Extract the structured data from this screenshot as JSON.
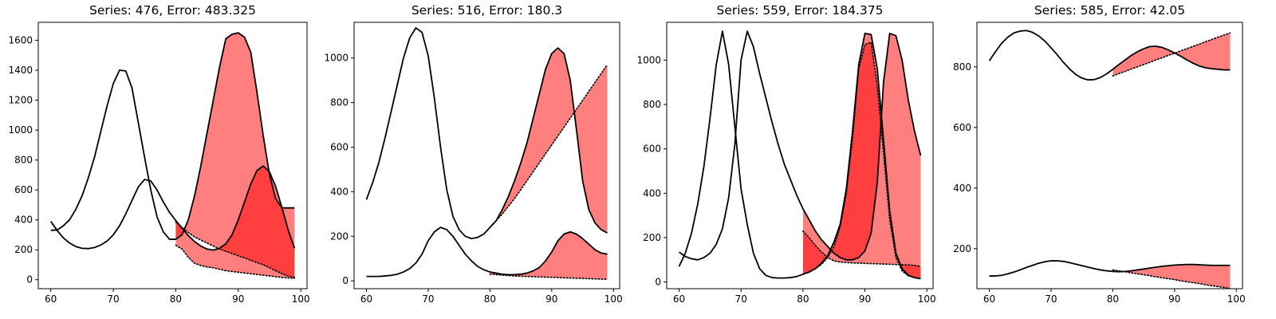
{
  "chart_data": [
    {
      "type": "line",
      "title": "Series: 476, Error: 483.325",
      "xlim": [
        58,
        101
      ],
      "ylim": [
        -60,
        1720
      ],
      "xticks": [
        60,
        70,
        80,
        90,
        100
      ],
      "yticks": [
        0,
        200,
        400,
        600,
        800,
        1000,
        1200,
        1400,
        1600
      ],
      "series": [
        {
          "x": [
            60,
            61,
            62,
            63,
            64,
            65,
            66,
            67,
            68,
            69,
            70,
            71,
            72,
            73,
            74,
            75,
            76,
            77,
            78,
            79,
            80,
            81,
            82,
            83,
            84,
            85,
            86,
            87,
            88,
            89,
            90,
            91,
            92,
            93,
            94,
            95,
            96,
            97,
            98,
            99
          ],
          "values": [
            390,
            330,
            280,
            245,
            222,
            210,
            208,
            215,
            232,
            258,
            300,
            360,
            440,
            530,
            620,
            670,
            660,
            600,
            520,
            450,
            395,
            345,
            295,
            255,
            225,
            205,
            198,
            210,
            240,
            300,
            400,
            520,
            640,
            730,
            760,
            720,
            620,
            480,
            330,
            210
          ]
        },
        {
          "x": [
            60,
            61,
            62,
            63,
            64,
            65,
            66,
            67,
            68,
            69,
            70,
            71,
            72,
            73,
            74,
            75,
            76,
            77,
            78,
            79,
            80,
            81,
            82,
            83,
            84,
            85,
            86,
            87,
            88,
            89,
            90,
            91,
            92,
            93,
            94,
            95,
            96,
            97,
            98,
            99
          ],
          "values": [
            330,
            332,
            360,
            400,
            470,
            560,
            680,
            820,
            990,
            1160,
            1310,
            1400,
            1395,
            1280,
            1050,
            820,
            600,
            420,
            320,
            270,
            270,
            300,
            400,
            560,
            760,
            980,
            1200,
            1420,
            1610,
            1640,
            1650,
            1620,
            1520,
            1250,
            960,
            700,
            540,
            480,
            480,
            480
          ]
        }
      ],
      "forecast": [
        {
          "x": [
            80,
            81,
            82,
            83,
            84,
            85,
            86,
            87,
            88,
            89,
            90,
            91,
            92,
            93,
            94,
            95,
            96,
            97,
            98,
            99
          ],
          "values": [
            230,
            205,
            150,
            110,
            95,
            85,
            80,
            70,
            60,
            55,
            50,
            45,
            40,
            35,
            30,
            25,
            20,
            15,
            12,
            10
          ]
        },
        {
          "x": [
            80,
            81,
            82,
            83,
            84,
            85,
            86,
            87,
            88,
            89,
            90,
            91,
            92,
            93,
            94,
            95,
            96,
            97,
            98,
            99
          ],
          "values": [
            385,
            350,
            315,
            285,
            265,
            245,
            225,
            205,
            190,
            175,
            160,
            145,
            130,
            115,
            100,
            80,
            60,
            40,
            25,
            15
          ]
        }
      ]
    },
    {
      "type": "line",
      "title": "Series: 516, Error: 180.3",
      "xlim": [
        58,
        101
      ],
      "ylim": [
        -35,
        1160
      ],
      "xticks": [
        60,
        70,
        80,
        90,
        100
      ],
      "yticks": [
        0,
        200,
        400,
        600,
        800,
        1000
      ],
      "series": [
        {
          "x": [
            60,
            61,
            62,
            63,
            64,
            65,
            66,
            67,
            68,
            69,
            70,
            71,
            72,
            73,
            74,
            75,
            76,
            77,
            78,
            79,
            80,
            81,
            82,
            83,
            84,
            85,
            86,
            87,
            88,
            89,
            90,
            91,
            92,
            93,
            94,
            95,
            96,
            97,
            98,
            99
          ],
          "values": [
            365,
            440,
            530,
            640,
            760,
            880,
            1000,
            1090,
            1135,
            1115,
            1010,
            820,
            600,
            410,
            290,
            230,
            200,
            190,
            195,
            210,
            240,
            270,
            320,
            380,
            450,
            530,
            620,
            730,
            840,
            950,
            1020,
            1045,
            1020,
            900,
            680,
            450,
            320,
            260,
            230,
            215
          ]
        },
        {
          "x": [
            60,
            61,
            62,
            63,
            64,
            65,
            66,
            67,
            68,
            69,
            70,
            71,
            72,
            73,
            74,
            75,
            76,
            77,
            78,
            79,
            80,
            81,
            82,
            83,
            84,
            85,
            86,
            87,
            88,
            89,
            90,
            91,
            92,
            93,
            94,
            95,
            96,
            97,
            98,
            99
          ],
          "values": [
            20,
            20,
            20,
            22,
            25,
            30,
            40,
            55,
            80,
            120,
            180,
            220,
            240,
            230,
            200,
            160,
            120,
            90,
            65,
            50,
            40,
            35,
            30,
            28,
            28,
            30,
            35,
            45,
            60,
            90,
            130,
            180,
            210,
            220,
            210,
            190,
            165,
            140,
            125,
            120
          ]
        }
      ],
      "forecast": [
        {
          "x": [
            80,
            81,
            82,
            83,
            84,
            85,
            86,
            87,
            88,
            89,
            90,
            91,
            92,
            93,
            94,
            95,
            96,
            97,
            98,
            99
          ],
          "values": [
            240,
            270,
            300,
            335,
            370,
            410,
            450,
            490,
            530,
            570,
            610,
            650,
            690,
            730,
            770,
            810,
            850,
            890,
            930,
            970
          ]
        },
        {
          "x": [
            80,
            81,
            82,
            83,
            84,
            85,
            86,
            87,
            88,
            89,
            90,
            91,
            92,
            93,
            94,
            95,
            96,
            97,
            98,
            99
          ],
          "values": [
            30,
            28,
            26,
            24,
            22,
            21,
            20,
            19,
            18,
            17,
            16,
            15,
            14,
            13,
            12,
            11,
            10,
            9,
            8,
            7
          ]
        }
      ]
    },
    {
      "type": "line",
      "title": "Series: 559, Error: 184.375",
      "xlim": [
        58,
        101
      ],
      "ylim": [
        -30,
        1170
      ],
      "xticks": [
        60,
        70,
        80,
        90,
        100
      ],
      "yticks": [
        0,
        200,
        400,
        600,
        800,
        1000
      ],
      "series": [
        {
          "x": [
            60,
            61,
            62,
            63,
            64,
            65,
            66,
            67,
            68,
            69,
            70,
            71,
            72,
            73,
            74,
            75,
            76,
            77,
            78,
            79,
            80,
            81,
            82,
            83,
            84,
            85,
            86,
            87,
            88,
            89,
            90,
            91,
            92,
            93,
            94,
            95,
            96,
            97,
            98,
            99
          ],
          "values": [
            70,
            130,
            220,
            350,
            520,
            740,
            980,
            1130,
            980,
            700,
            420,
            260,
            130,
            60,
            30,
            20,
            18,
            18,
            20,
            25,
            35,
            45,
            60,
            85,
            120,
            180,
            260,
            420,
            680,
            980,
            1120,
            1115,
            960,
            640,
            320,
            130,
            60,
            30,
            20,
            15
          ]
        },
        {
          "x": [
            60,
            61,
            62,
            63,
            64,
            65,
            66,
            67,
            68,
            69,
            70,
            71,
            72,
            73,
            74,
            75,
            76,
            77,
            78,
            79,
            80,
            81,
            82,
            83,
            84,
            85,
            86,
            87,
            88,
            89,
            90,
            91,
            92,
            93,
            94,
            95,
            96,
            97,
            98,
            99
          ],
          "values": [
            135,
            115,
            105,
            100,
            110,
            130,
            170,
            240,
            380,
            620,
            1000,
            1130,
            1060,
            940,
            830,
            720,
            620,
            530,
            460,
            390,
            330,
            280,
            230,
            190,
            160,
            130,
            110,
            100,
            100,
            110,
            140,
            220,
            450,
            900,
            1120,
            1110,
            1000,
            820,
            680,
            570
          ]
        }
      ],
      "forecast": [
        {
          "x": [
            80,
            81,
            82,
            83,
            84,
            85,
            86,
            87,
            88,
            89,
            90,
            91,
            92,
            93,
            94,
            95,
            96,
            97,
            98,
            99
          ],
          "values": [
            230,
            200,
            165,
            135,
            110,
            95,
            90,
            88,
            86,
            85,
            84,
            83,
            82,
            81,
            80,
            79,
            78,
            77,
            75,
            70
          ]
        },
        {
          "x": [
            80,
            81,
            82,
            83,
            84,
            85,
            86,
            87,
            88,
            89,
            90,
            91,
            92,
            93,
            94,
            95,
            96,
            97,
            98,
            99
          ],
          "values": [
            35,
            45,
            60,
            80,
            110,
            160,
            250,
            400,
            650,
            960,
            1070,
            1080,
            880,
            580,
            280,
            110,
            50,
            28,
            20,
            15
          ]
        }
      ]
    },
    {
      "type": "line",
      "title": "Series: 585, Error: 42.05",
      "xlim": [
        58,
        101
      ],
      "ylim": [
        68,
        947
      ],
      "xticks": [
        60,
        70,
        80,
        90,
        100
      ],
      "yticks": [
        200,
        400,
        600,
        800
      ],
      "series": [
        {
          "x": [
            60,
            61,
            62,
            63,
            64,
            65,
            66,
            67,
            68,
            69,
            70,
            71,
            72,
            73,
            74,
            75,
            76,
            77,
            78,
            79,
            80,
            81,
            82,
            83,
            84,
            85,
            86,
            87,
            88,
            89,
            90,
            91,
            92,
            93,
            94,
            95,
            96,
            97,
            98,
            99
          ],
          "values": [
            820,
            850,
            878,
            898,
            912,
            918,
            920,
            914,
            902,
            885,
            863,
            840,
            815,
            793,
            775,
            763,
            757,
            758,
            765,
            777,
            792,
            808,
            823,
            838,
            850,
            860,
            867,
            868,
            864,
            856,
            846,
            835,
            823,
            812,
            803,
            797,
            794,
            792,
            790,
            790
          ]
        },
        {
          "x": [
            60,
            61,
            62,
            63,
            64,
            65,
            66,
            67,
            68,
            69,
            70,
            71,
            72,
            73,
            74,
            75,
            76,
            77,
            78,
            79,
            80,
            81,
            82,
            83,
            84,
            85,
            86,
            87,
            88,
            89,
            90,
            91,
            92,
            93,
            94,
            95,
            96,
            97,
            98,
            99
          ],
          "values": [
            110,
            110,
            112,
            117,
            123,
            130,
            138,
            145,
            152,
            157,
            160,
            160,
            158,
            154,
            149,
            144,
            139,
            134,
            130,
            127,
            125,
            124,
            125,
            127,
            130,
            133,
            136,
            139,
            142,
            144,
            146,
            147,
            148,
            148,
            147,
            146,
            145,
            145,
            145,
            145
          ]
        }
      ],
      "forecast": [
        {
          "x": [
            80,
            81,
            82,
            83,
            84,
            85,
            86,
            87,
            88,
            89,
            90,
            91,
            92,
            93,
            94,
            95,
            96,
            97,
            98,
            99
          ],
          "values": [
            770,
            778,
            785,
            793,
            800,
            808,
            815,
            823,
            830,
            838,
            845,
            853,
            860,
            868,
            875,
            883,
            890,
            898,
            905,
            912
          ]
        },
        {
          "x": [
            80,
            81,
            82,
            83,
            84,
            85,
            86,
            87,
            88,
            89,
            90,
            91,
            92,
            93,
            94,
            95,
            96,
            97,
            98,
            99
          ],
          "values": [
            130,
            127,
            124,
            120,
            117,
            114,
            111,
            107,
            104,
            101,
            98,
            94,
            91,
            88,
            85,
            81,
            78,
            75,
            72,
            68
          ]
        }
      ]
    }
  ],
  "style": {
    "line_color": "#000000",
    "fill_color": "#ff0000",
    "fill_opacity": 0.5,
    "background": "#ffffff"
  }
}
